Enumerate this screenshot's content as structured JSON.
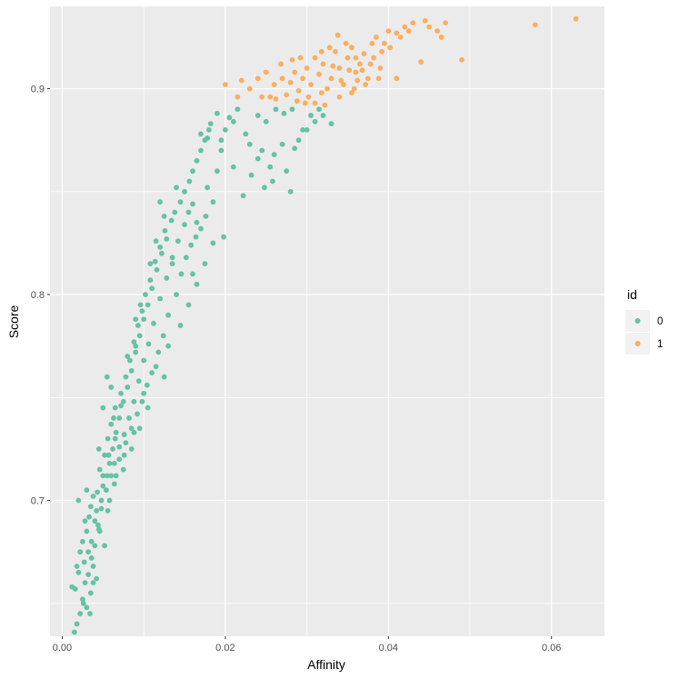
{
  "chart_data": {
    "type": "scatter",
    "xlabel": "Affinity",
    "ylabel": "Score",
    "xlim": [
      -0.0015,
      0.0665
    ],
    "ylim": [
      0.634,
      0.94
    ],
    "x_ticks": [
      0.0,
      0.02,
      0.04,
      0.06
    ],
    "x_tick_labels": [
      "0.00",
      "0.02",
      "0.04",
      "0.06"
    ],
    "y_ticks": [
      0.7,
      0.8,
      0.9
    ],
    "y_tick_labels": [
      "0.7",
      "0.8",
      "0.9"
    ],
    "grid": true,
    "legend": {
      "title": "id",
      "position": "right"
    },
    "colors": {
      "0": "#66c2a5",
      "1": "#fdae61",
      "panel": "#ebebeb",
      "grid": "#ffffff"
    },
    "series": [
      {
        "name": "0",
        "color": "#66c2a5",
        "points": [
          [
            0.0015,
            0.636
          ],
          [
            0.0018,
            0.64
          ],
          [
            0.0022,
            0.645
          ],
          [
            0.0016,
            0.657
          ],
          [
            0.0012,
            0.658
          ],
          [
            0.0025,
            0.652
          ],
          [
            0.003,
            0.648
          ],
          [
            0.0028,
            0.66
          ],
          [
            0.002,
            0.665
          ],
          [
            0.0035,
            0.655
          ],
          [
            0.0027,
            0.67
          ],
          [
            0.0032,
            0.675
          ],
          [
            0.0038,
            0.668
          ],
          [
            0.0025,
            0.68
          ],
          [
            0.003,
            0.685
          ],
          [
            0.0036,
            0.68
          ],
          [
            0.004,
            0.69
          ],
          [
            0.0033,
            0.692
          ],
          [
            0.0045,
            0.686
          ],
          [
            0.0042,
            0.695
          ],
          [
            0.0048,
            0.7
          ],
          [
            0.0038,
            0.702
          ],
          [
            0.005,
            0.707
          ],
          [
            0.0055,
            0.712
          ],
          [
            0.0046,
            0.715
          ],
          [
            0.0058,
            0.718
          ],
          [
            0.0052,
            0.722
          ],
          [
            0.0062,
            0.725
          ],
          [
            0.0056,
            0.73
          ],
          [
            0.0066,
            0.733
          ],
          [
            0.006,
            0.737
          ],
          [
            0.007,
            0.74
          ],
          [
            0.0065,
            0.745
          ],
          [
            0.0075,
            0.748
          ],
          [
            0.0072,
            0.752
          ],
          [
            0.008,
            0.755
          ],
          [
            0.0078,
            0.76
          ],
          [
            0.0085,
            0.763
          ],
          [
            0.0083,
            0.768
          ],
          [
            0.009,
            0.772
          ],
          [
            0.0088,
            0.777
          ],
          [
            0.0095,
            0.78
          ],
          [
            0.0093,
            0.785
          ],
          [
            0.01,
            0.788
          ],
          [
            0.0098,
            0.792
          ],
          [
            0.0105,
            0.795
          ],
          [
            0.0102,
            0.8
          ],
          [
            0.011,
            0.803
          ],
          [
            0.0108,
            0.807
          ],
          [
            0.0116,
            0.812
          ],
          [
            0.0114,
            0.816
          ],
          [
            0.0122,
            0.82
          ],
          [
            0.012,
            0.823
          ],
          [
            0.0128,
            0.827
          ],
          [
            0.0126,
            0.831
          ],
          [
            0.0134,
            0.836
          ],
          [
            0.0138,
            0.84
          ],
          [
            0.0145,
            0.845
          ],
          [
            0.015,
            0.85
          ],
          [
            0.0156,
            0.855
          ],
          [
            0.016,
            0.86
          ],
          [
            0.0165,
            0.865
          ],
          [
            0.017,
            0.87
          ],
          [
            0.0175,
            0.875
          ],
          [
            0.018,
            0.88
          ],
          [
            0.0085,
            0.735
          ],
          [
            0.0092,
            0.742
          ],
          [
            0.0078,
            0.728
          ],
          [
            0.0098,
            0.748
          ],
          [
            0.0104,
            0.756
          ],
          [
            0.007,
            0.72
          ],
          [
            0.0064,
            0.708
          ],
          [
            0.0058,
            0.7
          ],
          [
            0.011,
            0.762
          ],
          [
            0.0118,
            0.772
          ],
          [
            0.0124,
            0.78
          ],
          [
            0.013,
            0.79
          ],
          [
            0.014,
            0.8
          ],
          [
            0.0146,
            0.81
          ],
          [
            0.0152,
            0.818
          ],
          [
            0.0158,
            0.824
          ],
          [
            0.0164,
            0.828
          ],
          [
            0.017,
            0.832
          ],
          [
            0.0176,
            0.838
          ],
          [
            0.0185,
            0.845
          ],
          [
            0.016,
            0.844
          ],
          [
            0.015,
            0.834
          ],
          [
            0.0142,
            0.826
          ],
          [
            0.0135,
            0.818
          ],
          [
            0.0128,
            0.808
          ],
          [
            0.012,
            0.798
          ],
          [
            0.0112,
            0.786
          ],
          [
            0.0106,
            0.776
          ],
          [
            0.01,
            0.768
          ],
          [
            0.0094,
            0.758
          ],
          [
            0.0088,
            0.748
          ],
          [
            0.0082,
            0.74
          ],
          [
            0.0076,
            0.732
          ],
          [
            0.007,
            0.726
          ],
          [
            0.0064,
            0.718
          ],
          [
            0.006,
            0.712
          ],
          [
            0.0054,
            0.705
          ],
          [
            0.0048,
            0.696
          ],
          [
            0.0044,
            0.688
          ],
          [
            0.004,
            0.678
          ],
          [
            0.0036,
            0.672
          ],
          [
            0.0032,
            0.664
          ],
          [
            0.0022,
            0.675
          ],
          [
            0.0018,
            0.668
          ],
          [
            0.0028,
            0.69
          ],
          [
            0.0035,
            0.697
          ],
          [
            0.0043,
            0.704
          ],
          [
            0.005,
            0.712
          ],
          [
            0.0057,
            0.722
          ],
          [
            0.0063,
            0.74
          ],
          [
            0.0072,
            0.746
          ],
          [
            0.008,
            0.77
          ],
          [
            0.009,
            0.788
          ],
          [
            0.0096,
            0.795
          ],
          [
            0.0108,
            0.815
          ],
          [
            0.0115,
            0.826
          ],
          [
            0.0125,
            0.838
          ],
          [
            0.014,
            0.852
          ],
          [
            0.0155,
            0.84
          ],
          [
            0.0165,
            0.835
          ],
          [
            0.0178,
            0.852
          ],
          [
            0.019,
            0.86
          ],
          [
            0.0195,
            0.87
          ],
          [
            0.02,
            0.88
          ],
          [
            0.0205,
            0.886
          ],
          [
            0.021,
            0.884
          ],
          [
            0.0215,
            0.89
          ],
          [
            0.0225,
            0.878
          ],
          [
            0.023,
            0.873
          ],
          [
            0.024,
            0.866
          ],
          [
            0.0245,
            0.87
          ],
          [
            0.0255,
            0.862
          ],
          [
            0.026,
            0.868
          ],
          [
            0.027,
            0.873
          ],
          [
            0.0275,
            0.86
          ],
          [
            0.0285,
            0.871
          ],
          [
            0.029,
            0.875
          ],
          [
            0.03,
            0.88
          ],
          [
            0.031,
            0.884
          ],
          [
            0.032,
            0.887
          ],
          [
            0.033,
            0.883
          ],
          [
            0.025,
            0.884
          ],
          [
            0.0262,
            0.89
          ],
          [
            0.0272,
            0.888
          ],
          [
            0.0282,
            0.89
          ],
          [
            0.024,
            0.887
          ],
          [
            0.0232,
            0.858
          ],
          [
            0.0248,
            0.852
          ],
          [
            0.0258,
            0.855
          ],
          [
            0.021,
            0.862
          ],
          [
            0.0222,
            0.848
          ],
          [
            0.028,
            0.85
          ],
          [
            0.0295,
            0.88
          ],
          [
            0.0305,
            0.887
          ],
          [
            0.0315,
            0.89
          ],
          [
            0.019,
            0.888
          ],
          [
            0.0182,
            0.883
          ],
          [
            0.017,
            0.878
          ],
          [
            0.0178,
            0.876
          ],
          [
            0.0195,
            0.875
          ],
          [
            0.012,
            0.845
          ],
          [
            0.0135,
            0.815
          ],
          [
            0.016,
            0.81
          ],
          [
            0.0125,
            0.76
          ],
          [
            0.009,
            0.775
          ],
          [
            0.006,
            0.755
          ],
          [
            0.005,
            0.745
          ],
          [
            0.0045,
            0.725
          ],
          [
            0.003,
            0.705
          ],
          [
            0.002,
            0.7
          ],
          [
            0.0055,
            0.76
          ],
          [
            0.0065,
            0.73
          ],
          [
            0.0075,
            0.715
          ],
          [
            0.0085,
            0.725
          ],
          [
            0.0095,
            0.735
          ],
          [
            0.0105,
            0.745
          ],
          [
            0.0115,
            0.765
          ],
          [
            0.013,
            0.775
          ],
          [
            0.0145,
            0.785
          ],
          [
            0.0155,
            0.795
          ],
          [
            0.0165,
            0.805
          ],
          [
            0.0175,
            0.815
          ],
          [
            0.0185,
            0.825
          ],
          [
            0.0198,
            0.828
          ],
          [
            0.01,
            0.752
          ],
          [
            0.0088,
            0.733
          ],
          [
            0.0076,
            0.722
          ],
          [
            0.0066,
            0.712
          ],
          [
            0.0056,
            0.695
          ],
          [
            0.0046,
            0.685
          ],
          [
            0.0038,
            0.66
          ],
          [
            0.0026,
            0.65
          ],
          [
            0.0034,
            0.645
          ],
          [
            0.0042,
            0.662
          ],
          [
            0.0052,
            0.678
          ]
        ]
      },
      {
        "name": "1",
        "color": "#fdae61",
        "points": [
          [
            0.02,
            0.902
          ],
          [
            0.0215,
            0.896
          ],
          [
            0.022,
            0.904
          ],
          [
            0.023,
            0.9
          ],
          [
            0.024,
            0.905
          ],
          [
            0.025,
            0.908
          ],
          [
            0.0255,
            0.896
          ],
          [
            0.026,
            0.902
          ],
          [
            0.027,
            0.905
          ],
          [
            0.0275,
            0.897
          ],
          [
            0.028,
            0.903
          ],
          [
            0.0285,
            0.908
          ],
          [
            0.029,
            0.899
          ],
          [
            0.0295,
            0.905
          ],
          [
            0.03,
            0.91
          ],
          [
            0.0305,
            0.902
          ],
          [
            0.031,
            0.915
          ],
          [
            0.0315,
            0.907
          ],
          [
            0.032,
            0.912
          ],
          [
            0.0325,
            0.9
          ],
          [
            0.033,
            0.905
          ],
          [
            0.0335,
            0.918
          ],
          [
            0.034,
            0.91
          ],
          [
            0.0345,
            0.902
          ],
          [
            0.035,
            0.915
          ],
          [
            0.0355,
            0.92
          ],
          [
            0.036,
            0.908
          ],
          [
            0.0365,
            0.912
          ],
          [
            0.037,
            0.917
          ],
          [
            0.0375,
            0.905
          ],
          [
            0.038,
            0.922
          ],
          [
            0.0385,
            0.925
          ],
          [
            0.039,
            0.91
          ],
          [
            0.04,
            0.928
          ],
          [
            0.041,
            0.927
          ],
          [
            0.042,
            0.93
          ],
          [
            0.043,
            0.932
          ],
          [
            0.044,
            0.913
          ],
          [
            0.045,
            0.93
          ],
          [
            0.046,
            0.928
          ],
          [
            0.047,
            0.932
          ],
          [
            0.049,
            0.914
          ],
          [
            0.058,
            0.931
          ],
          [
            0.063,
            0.934
          ],
          [
            0.041,
            0.905
          ],
          [
            0.0298,
            0.893
          ],
          [
            0.031,
            0.893
          ],
          [
            0.0322,
            0.892
          ],
          [
            0.034,
            0.896
          ],
          [
            0.0355,
            0.898
          ],
          [
            0.0362,
            0.904
          ],
          [
            0.0372,
            0.902
          ],
          [
            0.0382,
            0.915
          ],
          [
            0.0392,
            0.918
          ],
          [
            0.0402,
            0.92
          ],
          [
            0.0348,
            0.922
          ],
          [
            0.0338,
            0.926
          ],
          [
            0.0328,
            0.92
          ],
          [
            0.0318,
            0.918
          ],
          [
            0.0292,
            0.915
          ],
          [
            0.0282,
            0.914
          ],
          [
            0.0268,
            0.912
          ],
          [
            0.0245,
            0.896
          ],
          [
            0.0262,
            0.895
          ],
          [
            0.036,
            0.915
          ],
          [
            0.0368,
            0.909
          ],
          [
            0.0378,
            0.912
          ],
          [
            0.0388,
            0.905
          ],
          [
            0.0358,
            0.9
          ],
          [
            0.0342,
            0.904
          ],
          [
            0.0332,
            0.911
          ],
          [
            0.0352,
            0.909
          ],
          [
            0.0395,
            0.922
          ],
          [
            0.0415,
            0.925
          ],
          [
            0.0425,
            0.928
          ],
          [
            0.0445,
            0.933
          ],
          [
            0.0465,
            0.925
          ],
          [
            0.0318,
            0.898
          ],
          [
            0.0302,
            0.896
          ],
          [
            0.0288,
            0.894
          ]
        ]
      }
    ]
  }
}
